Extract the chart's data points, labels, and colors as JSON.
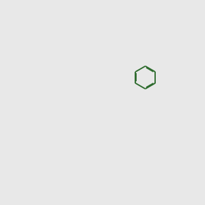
{
  "background_color": "#e8e8e8",
  "bond_color": "#2d6b2d",
  "atom_colors": {
    "O": "#ff0000",
    "N": "#0000cc",
    "S": "#cccc00",
    "C": "#2d6b2d"
  },
  "figsize": [
    3.0,
    3.0
  ],
  "dpi": 100,
  "lw": 1.4,
  "r": 0.55
}
